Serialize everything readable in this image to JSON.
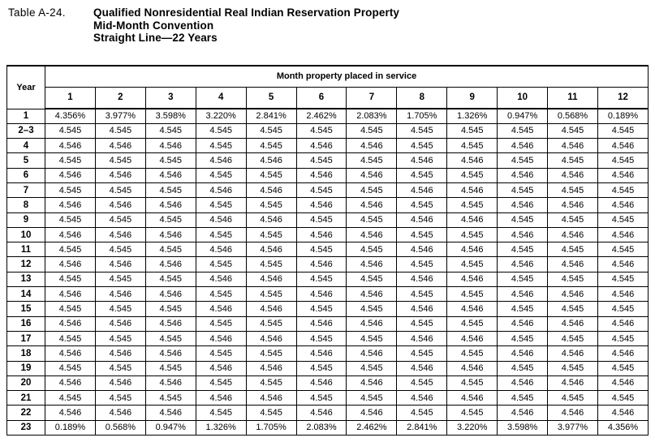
{
  "title": {
    "label": "Table A-24.",
    "line1": "Qualified Nonresidential Real Indian Reservation Property",
    "line2": "Mid-Month Convention",
    "line3": "Straight Line—22 Years"
  },
  "table": {
    "year_header": "Year",
    "month_header": "Month property placed in service",
    "month_columns": [
      "1",
      "2",
      "3",
      "4",
      "5",
      "6",
      "7",
      "8",
      "9",
      "10",
      "11",
      "12"
    ],
    "rows": [
      {
        "year": "1",
        "values": [
          "4.356%",
          "3.977%",
          "3.598%",
          "3.220%",
          "2.841%",
          "2.462%",
          "2.083%",
          "1.705%",
          "1.326%",
          "0.947%",
          "0.568%",
          "0.189%"
        ]
      },
      {
        "year": "2–3",
        "values": [
          "4.545",
          "4.545",
          "4.545",
          "4.545",
          "4.545",
          "4.545",
          "4.545",
          "4.545",
          "4.545",
          "4.545",
          "4.545",
          "4.545"
        ]
      },
      {
        "year": "4",
        "values": [
          "4.546",
          "4.546",
          "4.546",
          "4.545",
          "4.545",
          "4.546",
          "4.546",
          "4.545",
          "4.545",
          "4.546",
          "4.546",
          "4.546"
        ]
      },
      {
        "year": "5",
        "values": [
          "4.545",
          "4.545",
          "4.545",
          "4.546",
          "4.546",
          "4.545",
          "4.545",
          "4.546",
          "4.546",
          "4.545",
          "4.545",
          "4.545"
        ]
      },
      {
        "year": "6",
        "values": [
          "4.546",
          "4.546",
          "4.546",
          "4.545",
          "4.545",
          "4.546",
          "4.546",
          "4.545",
          "4.545",
          "4.546",
          "4.546",
          "4.546"
        ]
      },
      {
        "year": "7",
        "values": [
          "4.545",
          "4.545",
          "4.545",
          "4.546",
          "4.546",
          "4.545",
          "4.545",
          "4.546",
          "4.546",
          "4.545",
          "4.545",
          "4.545"
        ]
      },
      {
        "year": "8",
        "values": [
          "4.546",
          "4.546",
          "4.546",
          "4.545",
          "4.545",
          "4.546",
          "4.546",
          "4.545",
          "4.545",
          "4.546",
          "4.546",
          "4.546"
        ]
      },
      {
        "year": "9",
        "values": [
          "4.545",
          "4.545",
          "4.545",
          "4.546",
          "4.546",
          "4.545",
          "4.545",
          "4.546",
          "4.546",
          "4.545",
          "4.545",
          "4.545"
        ]
      },
      {
        "year": "10",
        "values": [
          "4.546",
          "4.546",
          "4.546",
          "4.545",
          "4.545",
          "4.546",
          "4.546",
          "4.545",
          "4.545",
          "4.546",
          "4.546",
          "4.546"
        ]
      },
      {
        "year": "11",
        "values": [
          "4.545",
          "4.545",
          "4.545",
          "4.546",
          "4.546",
          "4.545",
          "4.545",
          "4.546",
          "4.546",
          "4.545",
          "4.545",
          "4.545"
        ]
      },
      {
        "year": "12",
        "values": [
          "4.546",
          "4.546",
          "4.546",
          "4.545",
          "4.545",
          "4.546",
          "4.546",
          "4.545",
          "4.545",
          "4.546",
          "4.546",
          "4.546"
        ]
      },
      {
        "year": "13",
        "values": [
          "4.545",
          "4.545",
          "4.545",
          "4.546",
          "4.546",
          "4.545",
          "4.545",
          "4.546",
          "4.546",
          "4.545",
          "4.545",
          "4.545"
        ]
      },
      {
        "year": "14",
        "values": [
          "4.546",
          "4.546",
          "4.546",
          "4.545",
          "4.545",
          "4.546",
          "4.546",
          "4.545",
          "4.545",
          "4.546",
          "4.546",
          "4.546"
        ]
      },
      {
        "year": "15",
        "values": [
          "4.545",
          "4.545",
          "4.545",
          "4.546",
          "4.546",
          "4.545",
          "4.545",
          "4.546",
          "4.546",
          "4.545",
          "4.545",
          "4.545"
        ]
      },
      {
        "year": "16",
        "values": [
          "4.546",
          "4.546",
          "4.546",
          "4.545",
          "4.545",
          "4.546",
          "4.546",
          "4.545",
          "4.545",
          "4.546",
          "4.546",
          "4.546"
        ]
      },
      {
        "year": "17",
        "values": [
          "4.545",
          "4.545",
          "4.545",
          "4.546",
          "4.546",
          "4.545",
          "4.545",
          "4.546",
          "4.546",
          "4.545",
          "4.545",
          "4.545"
        ]
      },
      {
        "year": "18",
        "values": [
          "4.546",
          "4.546",
          "4.546",
          "4.545",
          "4.545",
          "4.546",
          "4.546",
          "4.545",
          "4.545",
          "4.546",
          "4.546",
          "4.546"
        ]
      },
      {
        "year": "19",
        "values": [
          "4.545",
          "4.545",
          "4.545",
          "4.546",
          "4.546",
          "4.545",
          "4.545",
          "4.546",
          "4.546",
          "4.545",
          "4.545",
          "4.545"
        ]
      },
      {
        "year": "20",
        "values": [
          "4.546",
          "4.546",
          "4.546",
          "4.545",
          "4.545",
          "4.546",
          "4.546",
          "4.545",
          "4.545",
          "4.546",
          "4.546",
          "4.546"
        ]
      },
      {
        "year": "21",
        "values": [
          "4.545",
          "4.545",
          "4.545",
          "4.546",
          "4.546",
          "4.545",
          "4.545",
          "4.546",
          "4.546",
          "4.545",
          "4.545",
          "4.545"
        ]
      },
      {
        "year": "22",
        "values": [
          "4.546",
          "4.546",
          "4.546",
          "4.545",
          "4.545",
          "4.546",
          "4.546",
          "4.545",
          "4.545",
          "4.546",
          "4.546",
          "4.546"
        ]
      },
      {
        "year": "23",
        "values": [
          "0.189%",
          "0.568%",
          "0.947%",
          "1.326%",
          "1.705%",
          "2.083%",
          "2.462%",
          "2.841%",
          "3.220%",
          "3.598%",
          "3.977%",
          "4.356%"
        ]
      }
    ]
  }
}
